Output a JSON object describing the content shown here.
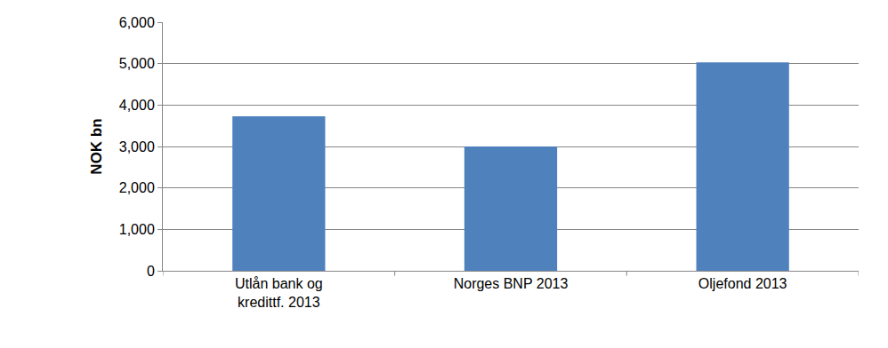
{
  "chart_data": {
    "type": "bar",
    "ylabel": "NOK bn",
    "categories": [
      "Utlån bank og kredittf. 2013",
      "Norges BNP 2013",
      "Oljefond 2013"
    ],
    "values": [
      3730,
      3000,
      5030
    ],
    "color": "#4f81bd",
    "ylim": [
      0,
      6000
    ],
    "yticks": [
      0,
      {
        "value": 1000,
        "label": "1,000"
      },
      {
        "value": 2000,
        "label": "2,000"
      },
      {
        "value": 3000,
        "label": "3,000"
      },
      {
        "value": 4000,
        "label": "4,000"
      },
      {
        "value": 5000,
        "label": "5,000"
      },
      {
        "value": 6000,
        "label": "6,000"
      }
    ],
    "grid": true
  }
}
